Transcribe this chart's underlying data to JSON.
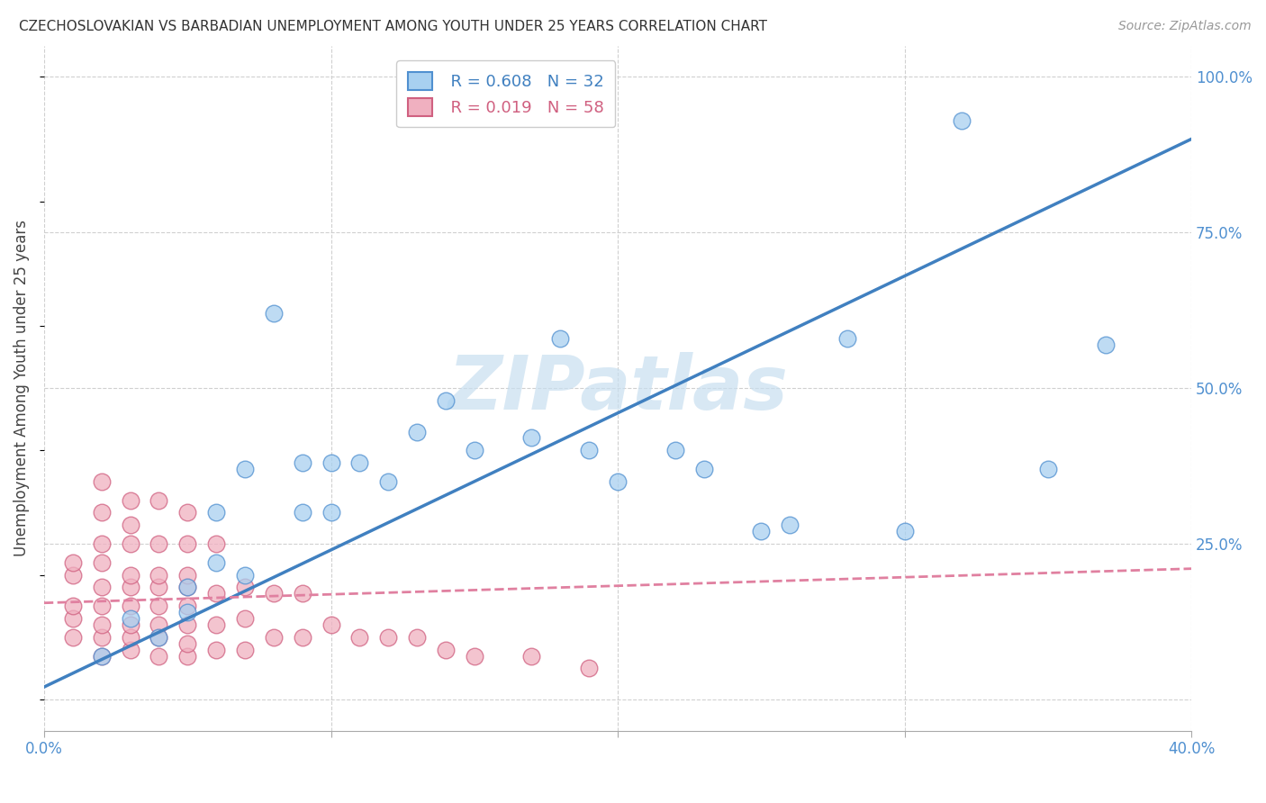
{
  "title": "CZECHOSLOVAKIAN VS BARBADIAN UNEMPLOYMENT AMONG YOUTH UNDER 25 YEARS CORRELATION CHART",
  "source": "Source: ZipAtlas.com",
  "ylabel": "Unemployment Among Youth under 25 years",
  "xlim": [
    0.0,
    0.4
  ],
  "ylim": [
    -0.05,
    1.05
  ],
  "xticks": [
    0.0,
    0.1,
    0.2,
    0.3,
    0.4
  ],
  "yticks": [
    0.0,
    0.25,
    0.5,
    0.75,
    1.0
  ],
  "background_color": "#ffffff",
  "grid_color": "#d0d0d0",
  "watermark_text": "ZIPatlas",
  "watermark_color": "#c8dff0",
  "legend_r1": "R = 0.608",
  "legend_n1": "N = 32",
  "legend_r2": "R = 0.019",
  "legend_n2": "N = 58",
  "color_czech_fill": "#a8d0f0",
  "color_czech_edge": "#5090d0",
  "color_barbadian_fill": "#f0b0c0",
  "color_barbadian_edge": "#d06080",
  "color_czech_line": "#4080c0",
  "color_barbadian_line": "#e080a0",
  "czech_scatter_x": [
    0.02,
    0.03,
    0.04,
    0.05,
    0.05,
    0.06,
    0.06,
    0.07,
    0.07,
    0.08,
    0.09,
    0.09,
    0.1,
    0.1,
    0.11,
    0.12,
    0.13,
    0.14,
    0.15,
    0.17,
    0.18,
    0.19,
    0.2,
    0.22,
    0.23,
    0.25,
    0.26,
    0.28,
    0.3,
    0.32,
    0.35,
    0.37
  ],
  "czech_scatter_y": [
    0.07,
    0.13,
    0.1,
    0.14,
    0.18,
    0.22,
    0.3,
    0.2,
    0.37,
    0.62,
    0.3,
    0.38,
    0.3,
    0.38,
    0.38,
    0.35,
    0.43,
    0.48,
    0.4,
    0.42,
    0.58,
    0.4,
    0.35,
    0.4,
    0.37,
    0.27,
    0.28,
    0.58,
    0.27,
    0.93,
    0.37,
    0.57
  ],
  "barbadian_scatter_x": [
    0.01,
    0.01,
    0.01,
    0.01,
    0.01,
    0.02,
    0.02,
    0.02,
    0.02,
    0.02,
    0.02,
    0.02,
    0.02,
    0.02,
    0.03,
    0.03,
    0.03,
    0.03,
    0.03,
    0.03,
    0.03,
    0.03,
    0.03,
    0.04,
    0.04,
    0.04,
    0.04,
    0.04,
    0.04,
    0.04,
    0.04,
    0.05,
    0.05,
    0.05,
    0.05,
    0.05,
    0.05,
    0.05,
    0.05,
    0.06,
    0.06,
    0.06,
    0.06,
    0.07,
    0.07,
    0.07,
    0.08,
    0.08,
    0.09,
    0.09,
    0.1,
    0.11,
    0.12,
    0.13,
    0.14,
    0.15,
    0.17,
    0.19
  ],
  "barbadian_scatter_y": [
    0.1,
    0.13,
    0.15,
    0.2,
    0.22,
    0.07,
    0.1,
    0.12,
    0.15,
    0.18,
    0.22,
    0.25,
    0.3,
    0.35,
    0.08,
    0.1,
    0.12,
    0.15,
    0.18,
    0.2,
    0.25,
    0.28,
    0.32,
    0.07,
    0.1,
    0.12,
    0.15,
    0.18,
    0.2,
    0.25,
    0.32,
    0.07,
    0.09,
    0.12,
    0.15,
    0.18,
    0.2,
    0.25,
    0.3,
    0.08,
    0.12,
    0.17,
    0.25,
    0.08,
    0.13,
    0.18,
    0.1,
    0.17,
    0.1,
    0.17,
    0.12,
    0.1,
    0.1,
    0.1,
    0.08,
    0.07,
    0.07,
    0.05
  ],
  "czech_line_x": [
    0.0,
    0.4
  ],
  "czech_line_y": [
    0.02,
    0.9
  ],
  "barbadian_line_x": [
    0.0,
    0.4
  ],
  "barbadian_line_y": [
    0.155,
    0.21
  ]
}
